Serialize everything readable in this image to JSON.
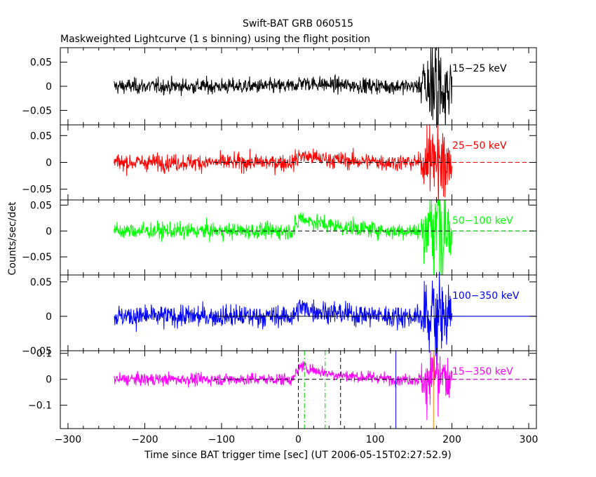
{
  "chart_data": {
    "type": "line",
    "title": "Swift-BAT GRB 060515",
    "subtitle": "Maskweighted Lightcurve (1 s binning) using the flight position",
    "xlabel": "Time since BAT trigger time [sec] (UT 2006-05-15T02:27:52.9)",
    "ylabel": "Counts/sec/det",
    "xlim": [
      -310,
      310
    ],
    "x_ticks": [
      -300,
      -200,
      -100,
      0,
      100,
      200,
      300
    ],
    "x_tick_labels": [
      "−300",
      "−200",
      "−100",
      "0",
      "100",
      "200",
      "300"
    ],
    "data_range": [
      -240,
      200
    ],
    "burst_window": [
      160,
      200
    ],
    "panels": [
      {
        "band": "15−25 keV",
        "color": "#000000",
        "ylim": [
          -0.08,
          0.08
        ],
        "y_ticks": [
          0.05,
          0,
          -0.05
        ],
        "y_tick_labels": [
          "0.05",
          "0",
          "−0.05"
        ],
        "noise_sigma": 0.008,
        "bump_amp": 0.006,
        "burst_amp": 0.055,
        "clip": true,
        "flat_line": "solid"
      },
      {
        "band": "25−50 keV",
        "color": "#ff0000",
        "ylim": [
          -0.07,
          0.07
        ],
        "y_ticks": [
          0.05,
          0,
          -0.05
        ],
        "y_tick_labels": [
          "0.05",
          "0",
          "−0.05"
        ],
        "noise_sigma": 0.008,
        "bump_amp": 0.01,
        "burst_amp": 0.045,
        "clip": true,
        "flat_line": "dashed"
      },
      {
        "band": "50−100 keV",
        "color": "#00ff00",
        "ylim": [
          -0.085,
          0.06
        ],
        "y_ticks": [
          0.05,
          0,
          -0.05
        ],
        "y_tick_labels": [
          "0.05",
          "0",
          "−0.05"
        ],
        "noise_sigma": 0.008,
        "bump_amp": 0.02,
        "burst_amp": 0.055,
        "clip": true,
        "flat_line": "dashed"
      },
      {
        "band": "100−350 keV",
        "color": "#0000ff",
        "ylim": [
          -0.05,
          0.06
        ],
        "y_ticks": [
          0.05,
          0,
          -0.05
        ],
        "y_tick_labels": [
          "0.05",
          "0",
          "−0.05"
        ],
        "noise_sigma": 0.008,
        "bump_amp": 0.01,
        "burst_amp": 0.035,
        "clip": false,
        "flat_line": "solid"
      },
      {
        "band": "15−350 keV",
        "color": "#ff00ff",
        "ylim": [
          -0.19,
          0.11
        ],
        "y_ticks": [
          0.1,
          0,
          -0.1
        ],
        "y_tick_labels": [
          "0.1",
          "0",
          "−0.1"
        ],
        "noise_sigma": 0.012,
        "bump_amp": 0.04,
        "burst_amp": 0.09,
        "clip": true,
        "flat_line": "dashed"
      }
    ],
    "markers": [
      {
        "x": 0,
        "color": "#000000",
        "style": "dashed"
      },
      {
        "x": 55,
        "color": "#000000",
        "style": "dashed"
      },
      {
        "x": 8,
        "color": "#00cc00",
        "style": "dashdot"
      },
      {
        "x": 35,
        "color": "#00cc00",
        "style": "dashdot"
      },
      {
        "x": 127,
        "color": "#0000ff",
        "style": "solid"
      },
      {
        "x": 176,
        "color": "#ff8000",
        "style": "solid"
      }
    ]
  }
}
